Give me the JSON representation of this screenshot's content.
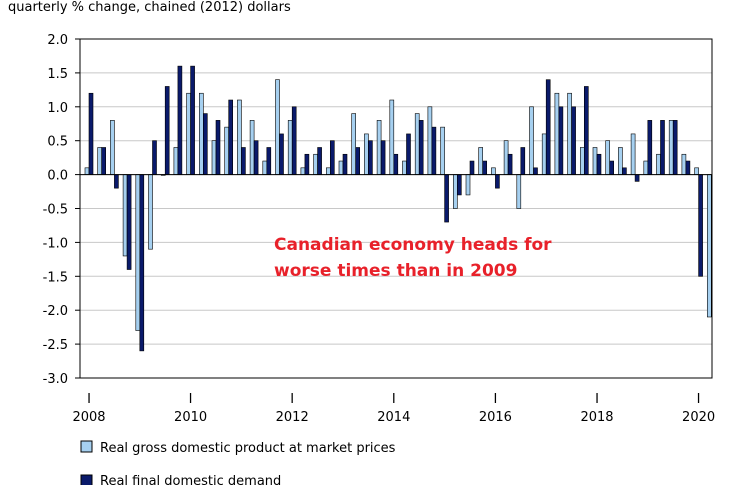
{
  "chart_data": {
    "type": "bar",
    "ylabel": "quarterly % change, chained (2012) dollars",
    "ylim": [
      -3.0,
      2.0
    ],
    "yticks": [
      "2.0",
      "1.5",
      "1.0",
      "0.5",
      "0.0",
      "-0.5",
      "-1.0",
      "-1.5",
      "-2.0",
      "-2.5",
      "-3.0"
    ],
    "x_start_year": 2008,
    "x_start_quarter": 1,
    "year_tick_labels": [
      {
        "year": 2008,
        "q": "I",
        "label": "2008"
      },
      {
        "year": 2010,
        "q": "I",
        "label": "2010"
      },
      {
        "year": 2012,
        "q": "I",
        "label": "2012"
      },
      {
        "year": 2014,
        "q": "I",
        "label": "2014"
      },
      {
        "year": 2016,
        "q": "I",
        "label": "2016"
      },
      {
        "year": 2018,
        "q": "I",
        "label": "2018"
      },
      {
        "year": 2020,
        "q": "I",
        "label": "2020"
      }
    ],
    "series": [
      {
        "name": "Real gross domestic product at market prices",
        "color": "#a6d0f0",
        "values": [
          0.1,
          0.4,
          0.8,
          -1.2,
          -2.3,
          -1.1,
          0.0,
          0.4,
          1.2,
          1.2,
          0.5,
          0.7,
          1.1,
          0.8,
          0.2,
          1.4,
          0.8,
          0.1,
          0.3,
          0.1,
          0.2,
          0.9,
          0.6,
          0.8,
          1.1,
          0.2,
          0.9,
          1.0,
          0.7,
          -0.5,
          -0.3,
          0.4,
          0.1,
          0.5,
          -0.5,
          1.0,
          0.6,
          1.2,
          1.2,
          0.4,
          0.4,
          0.5,
          0.4,
          0.6,
          0.2,
          0.3,
          0.8,
          0.3,
          0.1,
          -2.1
        ]
      },
      {
        "name": "Real final domestic demand",
        "color": "#0a1a6b",
        "values": [
          1.2,
          0.4,
          -0.2,
          -1.4,
          -2.6,
          0.5,
          1.3,
          1.6,
          1.6,
          0.9,
          0.8,
          1.1,
          0.4,
          0.5,
          0.4,
          0.6,
          1.0,
          0.3,
          0.4,
          0.5,
          0.3,
          0.4,
          0.5,
          0.5,
          0.3,
          0.6,
          0.8,
          0.7,
          -0.7,
          -0.3,
          0.2,
          0.2,
          -0.2,
          0.3,
          0.4,
          0.1,
          1.4,
          1.0,
          1.0,
          1.3,
          0.3,
          0.2,
          0.1,
          -0.1,
          0.8,
          0.8,
          0.8,
          0.2,
          -1.5,
          null
        ]
      }
    ],
    "annotation": [
      "Canadian economy heads for",
      "worse times than in 2009"
    ]
  }
}
